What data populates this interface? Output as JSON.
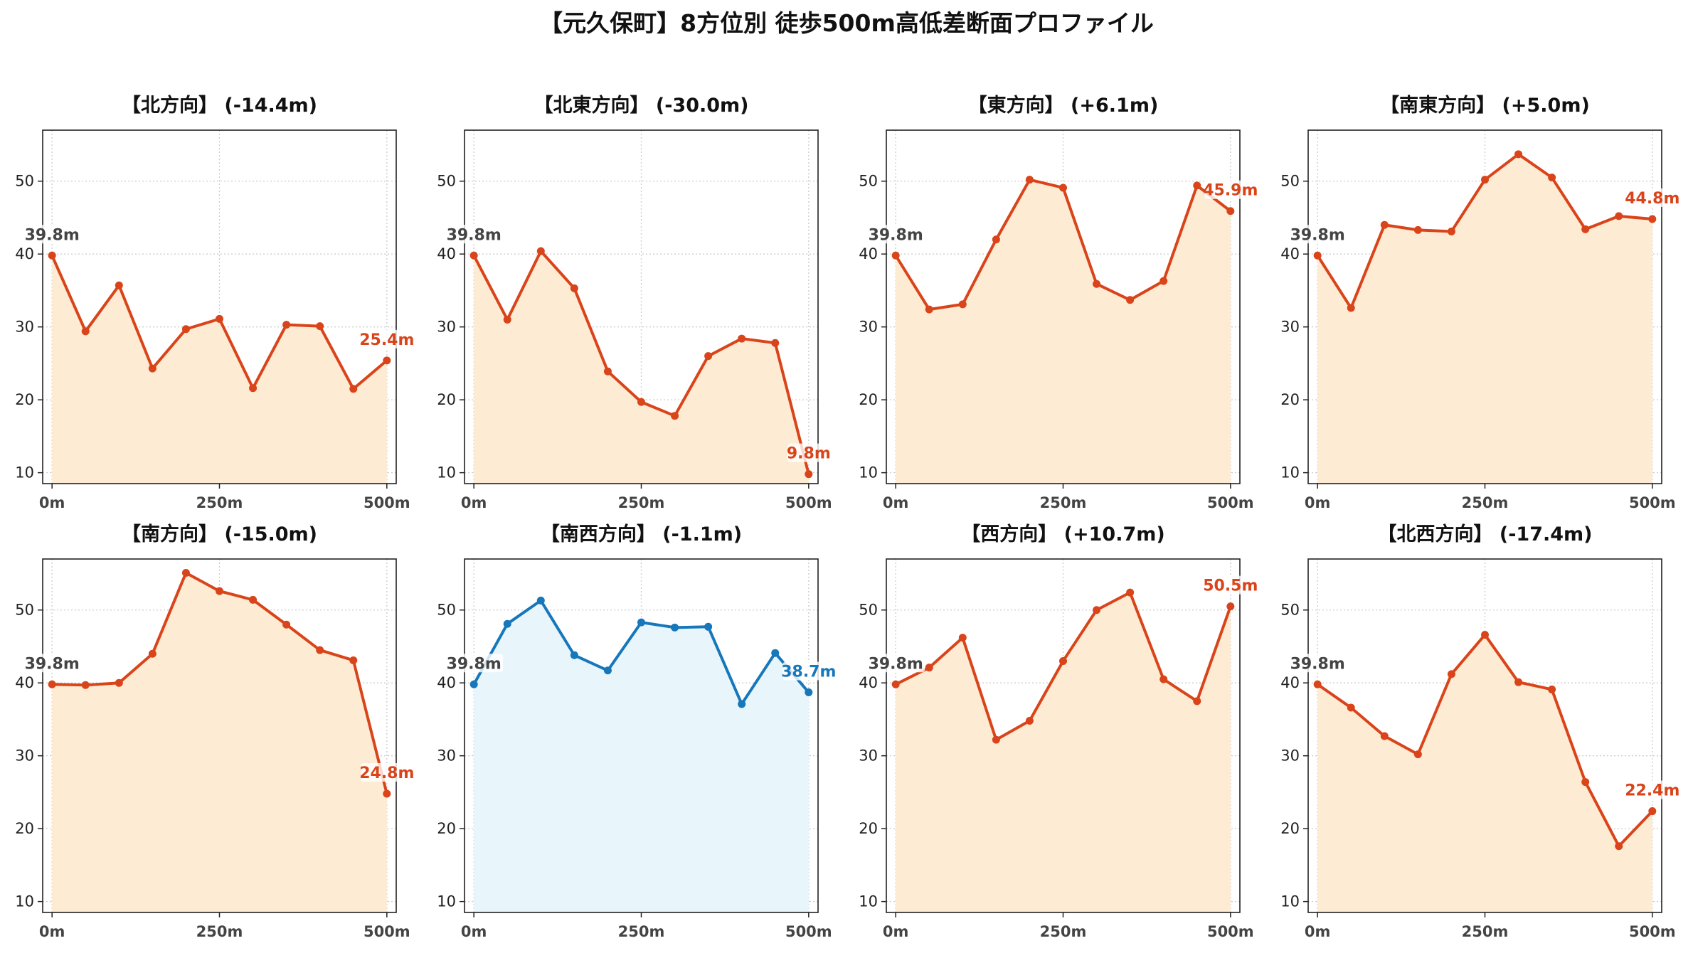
{
  "suptitle": "【元久保町】8方位別 徒歩500m高低差断面プロファイル",
  "colors": {
    "down": "#d9441a",
    "down_fill": "#fdebd3",
    "flat": "#1777bb",
    "flat_fill": "#e8f5fb",
    "grid": "#cccccc",
    "start_label": "#444444"
  },
  "chart_data": [
    {
      "type": "line",
      "title": "【北方向】 (-14.4m)",
      "x": [
        0,
        50,
        100,
        150,
        200,
        250,
        300,
        350,
        400,
        450,
        500
      ],
      "values": [
        39.8,
        29.4,
        35.7,
        24.3,
        29.7,
        31.1,
        21.6,
        30.3,
        30.1,
        21.5,
        25.4
      ],
      "start_label": "39.8m",
      "end_label": "25.4m",
      "color": "#d9441a",
      "fill": "#fdebd3",
      "xticks": [
        "0m",
        "250m",
        "500m"
      ],
      "yticks": [
        10,
        20,
        30,
        40,
        50
      ],
      "ylim": [
        8.5,
        57
      ],
      "xlim": [
        -14,
        514
      ],
      "grid": true
    },
    {
      "type": "line",
      "title": "【北東方向】 (-30.0m)",
      "x": [
        0,
        50,
        100,
        150,
        200,
        250,
        300,
        350,
        400,
        450,
        500
      ],
      "values": [
        39.8,
        31.0,
        40.4,
        35.3,
        23.9,
        19.7,
        17.8,
        26.0,
        28.4,
        27.8,
        9.8
      ],
      "start_label": "39.8m",
      "end_label": "9.8m",
      "color": "#d9441a",
      "fill": "#fdebd3",
      "xticks": [
        "0m",
        "250m",
        "500m"
      ],
      "yticks": [
        10,
        20,
        30,
        40,
        50
      ],
      "ylim": [
        8.5,
        57
      ],
      "xlim": [
        -14,
        514
      ],
      "grid": true
    },
    {
      "type": "line",
      "title": "【東方向】 (+6.1m)",
      "x": [
        0,
        50,
        100,
        150,
        200,
        250,
        300,
        350,
        400,
        450,
        500
      ],
      "values": [
        39.8,
        32.4,
        33.1,
        42.0,
        50.2,
        49.1,
        35.9,
        33.7,
        36.3,
        49.4,
        45.9
      ],
      "start_label": "39.8m",
      "end_label": "45.9m",
      "color": "#d9441a",
      "fill": "#fdebd3",
      "xticks": [
        "0m",
        "250m",
        "500m"
      ],
      "yticks": [
        10,
        20,
        30,
        40,
        50
      ],
      "ylim": [
        8.5,
        57
      ],
      "xlim": [
        -14,
        514
      ],
      "grid": true
    },
    {
      "type": "line",
      "title": "【南東方向】 (+5.0m)",
      "x": [
        0,
        50,
        100,
        150,
        200,
        250,
        300,
        350,
        400,
        450,
        500
      ],
      "values": [
        39.8,
        32.6,
        44.0,
        43.3,
        43.1,
        50.2,
        53.7,
        50.5,
        43.4,
        45.2,
        44.8
      ],
      "start_label": "39.8m",
      "end_label": "44.8m",
      "color": "#d9441a",
      "fill": "#fdebd3",
      "xticks": [
        "0m",
        "250m",
        "500m"
      ],
      "yticks": [
        10,
        20,
        30,
        40,
        50
      ],
      "ylim": [
        8.5,
        57
      ],
      "xlim": [
        -14,
        514
      ],
      "grid": true
    },
    {
      "type": "line",
      "title": "【南方向】 (-15.0m)",
      "x": [
        0,
        50,
        100,
        150,
        200,
        250,
        300,
        350,
        400,
        450,
        500
      ],
      "values": [
        39.8,
        39.7,
        40.0,
        44.0,
        55.1,
        52.6,
        51.4,
        48.0,
        44.5,
        43.1,
        24.8
      ],
      "start_label": "39.8m",
      "end_label": "24.8m",
      "color": "#d9441a",
      "fill": "#fdebd3",
      "xticks": [
        "0m",
        "250m",
        "500m"
      ],
      "yticks": [
        10,
        20,
        30,
        40,
        50
      ],
      "ylim": [
        8.5,
        57
      ],
      "xlim": [
        -14,
        514
      ],
      "grid": true
    },
    {
      "type": "line",
      "title": "【南西方向】 (-1.1m)",
      "x": [
        0,
        50,
        100,
        150,
        200,
        250,
        300,
        350,
        400,
        450,
        500
      ],
      "values": [
        39.8,
        48.1,
        51.3,
        43.8,
        41.7,
        48.3,
        47.6,
        47.7,
        37.1,
        44.1,
        38.7
      ],
      "start_label": "39.8m",
      "end_label": "38.7m",
      "color": "#1777bb",
      "fill": "#e8f5fb",
      "xticks": [
        "0m",
        "250m",
        "500m"
      ],
      "yticks": [
        10,
        20,
        30,
        40,
        50
      ],
      "ylim": [
        8.5,
        57
      ],
      "xlim": [
        -14,
        514
      ],
      "grid": true
    },
    {
      "type": "line",
      "title": "【西方向】 (+10.7m)",
      "x": [
        0,
        50,
        100,
        150,
        200,
        250,
        300,
        350,
        400,
        450,
        500
      ],
      "values": [
        39.8,
        42.1,
        46.2,
        32.2,
        34.8,
        43.0,
        50.0,
        52.4,
        40.5,
        37.5,
        50.5
      ],
      "start_label": "39.8m",
      "end_label": "50.5m",
      "color": "#d9441a",
      "fill": "#fdebd3",
      "xticks": [
        "0m",
        "250m",
        "500m"
      ],
      "yticks": [
        10,
        20,
        30,
        40,
        50
      ],
      "ylim": [
        8.5,
        57
      ],
      "xlim": [
        -14,
        514
      ],
      "grid": true
    },
    {
      "type": "line",
      "title": "【北西方向】 (-17.4m)",
      "x": [
        0,
        50,
        100,
        150,
        200,
        250,
        300,
        350,
        400,
        450,
        500
      ],
      "values": [
        39.8,
        36.6,
        32.7,
        30.2,
        41.2,
        46.6,
        40.1,
        39.1,
        26.4,
        17.6,
        22.4
      ],
      "start_label": "39.8m",
      "end_label": "22.4m",
      "color": "#d9441a",
      "fill": "#fdebd3",
      "xticks": [
        "0m",
        "250m",
        "500m"
      ],
      "yticks": [
        10,
        20,
        30,
        40,
        50
      ],
      "ylim": [
        8.5,
        57
      ],
      "xlim": [
        -14,
        514
      ],
      "grid": true
    }
  ]
}
